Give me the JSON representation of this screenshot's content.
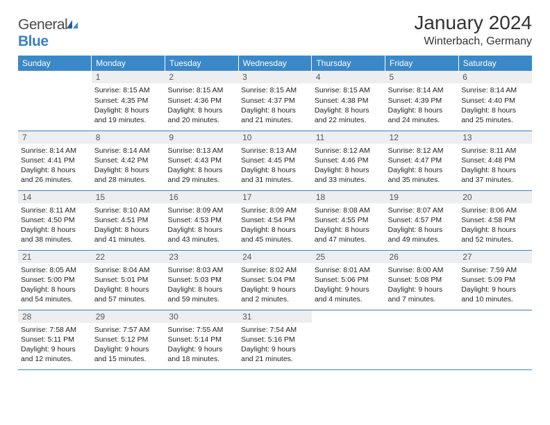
{
  "logo": {
    "text_general": "General",
    "text_blue": "Blue"
  },
  "title": "January 2024",
  "location": "Winterbach, Germany",
  "header_color": "#3b88c8",
  "row_border_color": "#3b7fc4",
  "daynum_bg": "#eceef0",
  "weekdays": [
    "Sunday",
    "Monday",
    "Tuesday",
    "Wednesday",
    "Thursday",
    "Friday",
    "Saturday"
  ],
  "weeks": [
    [
      {
        "n": "",
        "lines": []
      },
      {
        "n": "1",
        "lines": [
          "Sunrise: 8:15 AM",
          "Sunset: 4:35 PM",
          "Daylight: 8 hours",
          "and 19 minutes."
        ]
      },
      {
        "n": "2",
        "lines": [
          "Sunrise: 8:15 AM",
          "Sunset: 4:36 PM",
          "Daylight: 8 hours",
          "and 20 minutes."
        ]
      },
      {
        "n": "3",
        "lines": [
          "Sunrise: 8:15 AM",
          "Sunset: 4:37 PM",
          "Daylight: 8 hours",
          "and 21 minutes."
        ]
      },
      {
        "n": "4",
        "lines": [
          "Sunrise: 8:15 AM",
          "Sunset: 4:38 PM",
          "Daylight: 8 hours",
          "and 22 minutes."
        ]
      },
      {
        "n": "5",
        "lines": [
          "Sunrise: 8:14 AM",
          "Sunset: 4:39 PM",
          "Daylight: 8 hours",
          "and 24 minutes."
        ]
      },
      {
        "n": "6",
        "lines": [
          "Sunrise: 8:14 AM",
          "Sunset: 4:40 PM",
          "Daylight: 8 hours",
          "and 25 minutes."
        ]
      }
    ],
    [
      {
        "n": "7",
        "lines": [
          "Sunrise: 8:14 AM",
          "Sunset: 4:41 PM",
          "Daylight: 8 hours",
          "and 26 minutes."
        ]
      },
      {
        "n": "8",
        "lines": [
          "Sunrise: 8:14 AM",
          "Sunset: 4:42 PM",
          "Daylight: 8 hours",
          "and 28 minutes."
        ]
      },
      {
        "n": "9",
        "lines": [
          "Sunrise: 8:13 AM",
          "Sunset: 4:43 PM",
          "Daylight: 8 hours",
          "and 29 minutes."
        ]
      },
      {
        "n": "10",
        "lines": [
          "Sunrise: 8:13 AM",
          "Sunset: 4:45 PM",
          "Daylight: 8 hours",
          "and 31 minutes."
        ]
      },
      {
        "n": "11",
        "lines": [
          "Sunrise: 8:12 AM",
          "Sunset: 4:46 PM",
          "Daylight: 8 hours",
          "and 33 minutes."
        ]
      },
      {
        "n": "12",
        "lines": [
          "Sunrise: 8:12 AM",
          "Sunset: 4:47 PM",
          "Daylight: 8 hours",
          "and 35 minutes."
        ]
      },
      {
        "n": "13",
        "lines": [
          "Sunrise: 8:11 AM",
          "Sunset: 4:48 PM",
          "Daylight: 8 hours",
          "and 37 minutes."
        ]
      }
    ],
    [
      {
        "n": "14",
        "lines": [
          "Sunrise: 8:11 AM",
          "Sunset: 4:50 PM",
          "Daylight: 8 hours",
          "and 38 minutes."
        ]
      },
      {
        "n": "15",
        "lines": [
          "Sunrise: 8:10 AM",
          "Sunset: 4:51 PM",
          "Daylight: 8 hours",
          "and 41 minutes."
        ]
      },
      {
        "n": "16",
        "lines": [
          "Sunrise: 8:09 AM",
          "Sunset: 4:53 PM",
          "Daylight: 8 hours",
          "and 43 minutes."
        ]
      },
      {
        "n": "17",
        "lines": [
          "Sunrise: 8:09 AM",
          "Sunset: 4:54 PM",
          "Daylight: 8 hours",
          "and 45 minutes."
        ]
      },
      {
        "n": "18",
        "lines": [
          "Sunrise: 8:08 AM",
          "Sunset: 4:55 PM",
          "Daylight: 8 hours",
          "and 47 minutes."
        ]
      },
      {
        "n": "19",
        "lines": [
          "Sunrise: 8:07 AM",
          "Sunset: 4:57 PM",
          "Daylight: 8 hours",
          "and 49 minutes."
        ]
      },
      {
        "n": "20",
        "lines": [
          "Sunrise: 8:06 AM",
          "Sunset: 4:58 PM",
          "Daylight: 8 hours",
          "and 52 minutes."
        ]
      }
    ],
    [
      {
        "n": "21",
        "lines": [
          "Sunrise: 8:05 AM",
          "Sunset: 5:00 PM",
          "Daylight: 8 hours",
          "and 54 minutes."
        ]
      },
      {
        "n": "22",
        "lines": [
          "Sunrise: 8:04 AM",
          "Sunset: 5:01 PM",
          "Daylight: 8 hours",
          "and 57 minutes."
        ]
      },
      {
        "n": "23",
        "lines": [
          "Sunrise: 8:03 AM",
          "Sunset: 5:03 PM",
          "Daylight: 8 hours",
          "and 59 minutes."
        ]
      },
      {
        "n": "24",
        "lines": [
          "Sunrise: 8:02 AM",
          "Sunset: 5:04 PM",
          "Daylight: 9 hours",
          "and 2 minutes."
        ]
      },
      {
        "n": "25",
        "lines": [
          "Sunrise: 8:01 AM",
          "Sunset: 5:06 PM",
          "Daylight: 9 hours",
          "and 4 minutes."
        ]
      },
      {
        "n": "26",
        "lines": [
          "Sunrise: 8:00 AM",
          "Sunset: 5:08 PM",
          "Daylight: 9 hours",
          "and 7 minutes."
        ]
      },
      {
        "n": "27",
        "lines": [
          "Sunrise: 7:59 AM",
          "Sunset: 5:09 PM",
          "Daylight: 9 hours",
          "and 10 minutes."
        ]
      }
    ],
    [
      {
        "n": "28",
        "lines": [
          "Sunrise: 7:58 AM",
          "Sunset: 5:11 PM",
          "Daylight: 9 hours",
          "and 12 minutes."
        ]
      },
      {
        "n": "29",
        "lines": [
          "Sunrise: 7:57 AM",
          "Sunset: 5:12 PM",
          "Daylight: 9 hours",
          "and 15 minutes."
        ]
      },
      {
        "n": "30",
        "lines": [
          "Sunrise: 7:55 AM",
          "Sunset: 5:14 PM",
          "Daylight: 9 hours",
          "and 18 minutes."
        ]
      },
      {
        "n": "31",
        "lines": [
          "Sunrise: 7:54 AM",
          "Sunset: 5:16 PM",
          "Daylight: 9 hours",
          "and 21 minutes."
        ]
      },
      {
        "n": "",
        "lines": []
      },
      {
        "n": "",
        "lines": []
      },
      {
        "n": "",
        "lines": []
      }
    ]
  ]
}
